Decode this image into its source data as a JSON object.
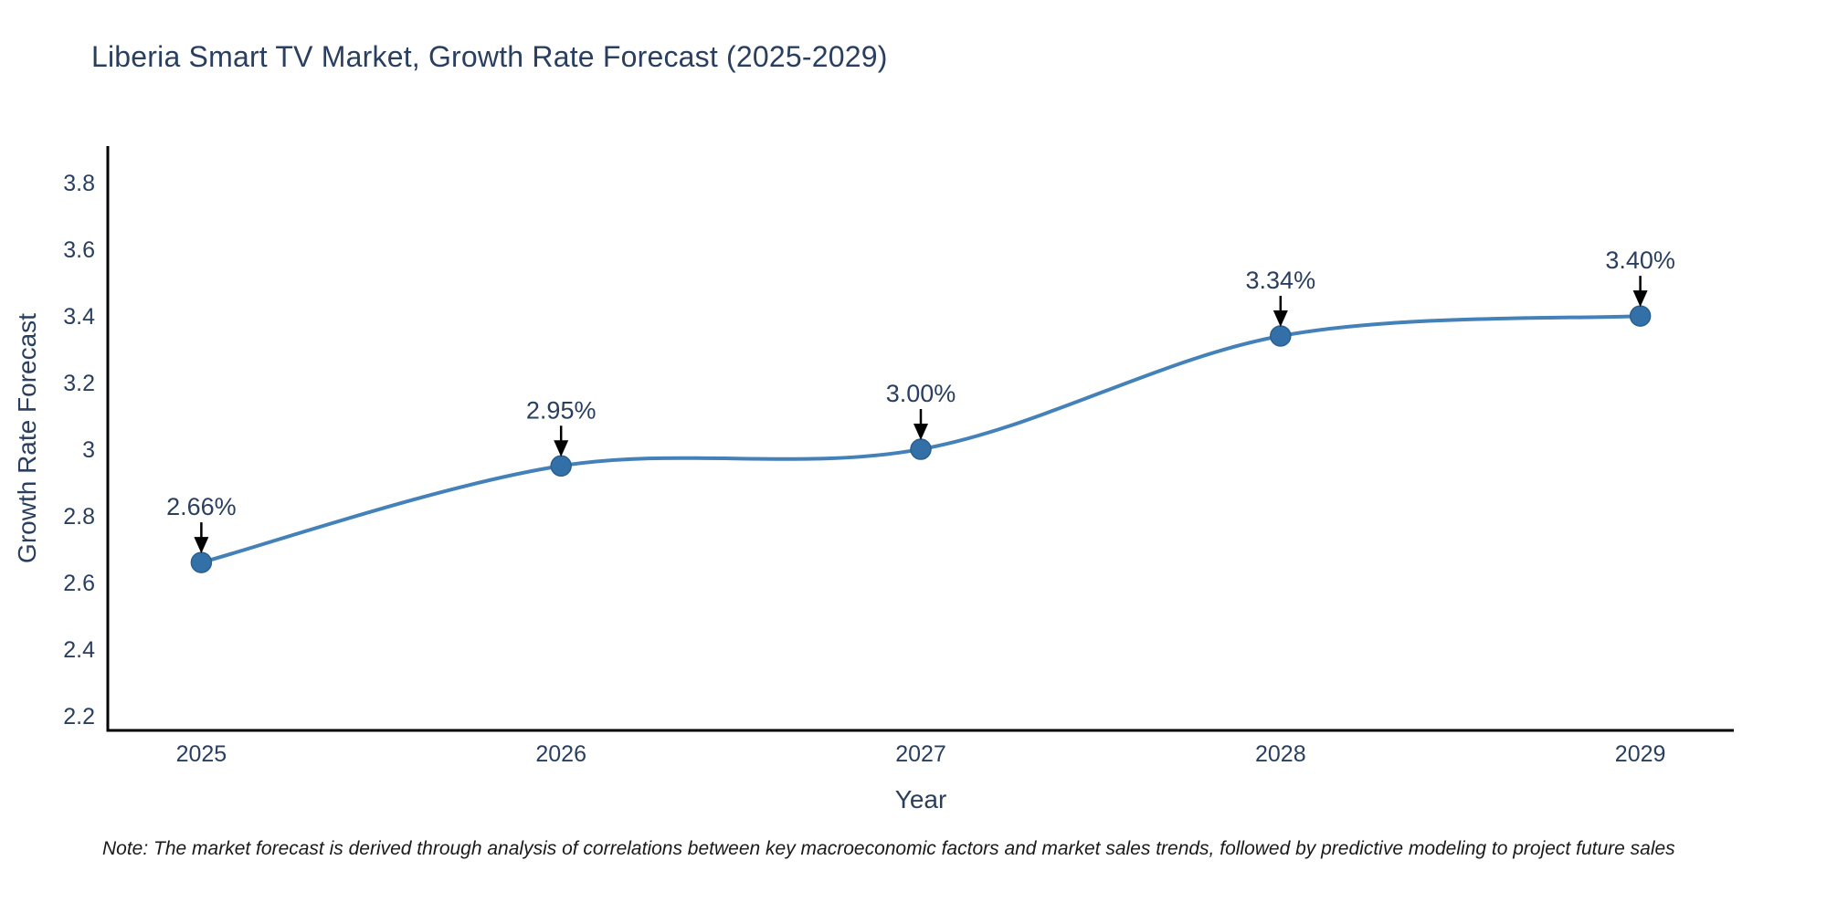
{
  "title": "Liberia Smart TV Market, Growth Rate Forecast (2025-2029)",
  "note": "Note: The market forecast is derived through analysis of correlations between key macroeconomic factors and market sales trends, followed by predictive modeling to project future sales",
  "chart_data": {
    "type": "line",
    "line_shape": "spline",
    "title": "Liberia Smart TV Market, Growth Rate Forecast (2025-2029)",
    "xlabel": "Year",
    "ylabel": "Growth Rate Forecast",
    "x": [
      2025,
      2026,
      2027,
      2028,
      2029
    ],
    "y": [
      2.66,
      2.95,
      3.0,
      3.34,
      3.4
    ],
    "point_labels": [
      "2.66%",
      "2.95%",
      "3.00%",
      "3.34%",
      "3.40%"
    ],
    "x_tick_labels": [
      "2025",
      "2026",
      "2027",
      "2028",
      "2029"
    ],
    "x_tick_values": [
      2025,
      2026,
      2027,
      2028,
      2029
    ],
    "y_tick_labels": [
      "3.8",
      "3.6",
      "3.4",
      "3.2",
      "3",
      "2.8",
      "2.6",
      "2.4",
      "2.2"
    ],
    "y_tick_values": [
      3.8,
      3.6,
      3.4,
      3.2,
      3.0,
      2.8,
      2.6,
      2.4,
      2.2
    ],
    "xlim": [
      2024.74,
      2029.26
    ],
    "ylim": [
      2.156,
      3.91
    ],
    "grid": false,
    "legend": "none",
    "colors": {
      "line": "#4381b8",
      "marker": "#3470a8",
      "marker_edge": "#2a5f8f",
      "arrow": "#000000",
      "axis": "#000000",
      "text": "#2a3f5f",
      "note_text": "#1a1a1a"
    }
  }
}
